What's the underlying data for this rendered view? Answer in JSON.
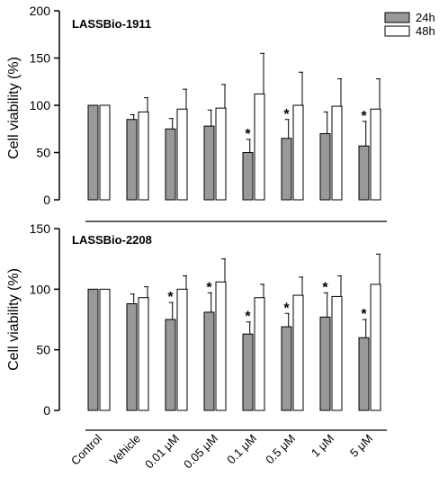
{
  "chart_data": [
    {
      "type": "bar",
      "title": "LASSBio-1911",
      "ylabel": "Cell viability (%)",
      "ylim": [
        0,
        200
      ],
      "yticks": [
        0,
        50,
        100,
        150,
        200
      ],
      "categories": [
        "Control",
        "Vehicle",
        "0.01 μM",
        "0.05 μM",
        "0.1 μM",
        "0.5 μM",
        "1 μM",
        "5 μM"
      ],
      "series": [
        {
          "name": "24h",
          "color": "#999999",
          "values": [
            100,
            85,
            75,
            78,
            50,
            65,
            70,
            57
          ],
          "errors": [
            0,
            5,
            11,
            17,
            14,
            20,
            23,
            26
          ]
        },
        {
          "name": "48h",
          "color": "#ffffff",
          "values": [
            100,
            93,
            96,
            97,
            112,
            100,
            99,
            96
          ],
          "errors": [
            0,
            15,
            21,
            25,
            43,
            35,
            29,
            32
          ]
        }
      ],
      "significant": [
        {
          "series": 0,
          "index": 4,
          "label": "*"
        },
        {
          "series": 0,
          "index": 5,
          "label": "*"
        },
        {
          "series": 0,
          "index": 7,
          "label": "*"
        }
      ],
      "legend_position": "top-right"
    },
    {
      "type": "bar",
      "title": "LASSBio-2208",
      "ylabel": "Cell viability (%)",
      "ylim": [
        0,
        150
      ],
      "yticks": [
        0,
        50,
        100,
        150
      ],
      "categories": [
        "Control",
        "Vehicle",
        "0.01 μM",
        "0.05 μM",
        "0.1 μM",
        "0.5 μM",
        "1 μM",
        "5 μM"
      ],
      "series": [
        {
          "name": "24h",
          "color": "#999999",
          "values": [
            100,
            88,
            75,
            81,
            63,
            69,
            77,
            60
          ],
          "errors": [
            0,
            8,
            14,
            16,
            10,
            11,
            20,
            15
          ]
        },
        {
          "name": "48h",
          "color": "#ffffff",
          "values": [
            100,
            93,
            100,
            106,
            93,
            95,
            94,
            104
          ],
          "errors": [
            0,
            9,
            11,
            19,
            11,
            15,
            17,
            25
          ]
        }
      ],
      "significant": [
        {
          "series": 0,
          "index": 2,
          "label": "*"
        },
        {
          "series": 0,
          "index": 3,
          "label": "*"
        },
        {
          "series": 0,
          "index": 4,
          "label": "*"
        },
        {
          "series": 0,
          "index": 5,
          "label": "*"
        },
        {
          "series": 0,
          "index": 6,
          "label": "*"
        },
        {
          "series": 0,
          "index": 7,
          "label": "*"
        }
      ]
    }
  ]
}
